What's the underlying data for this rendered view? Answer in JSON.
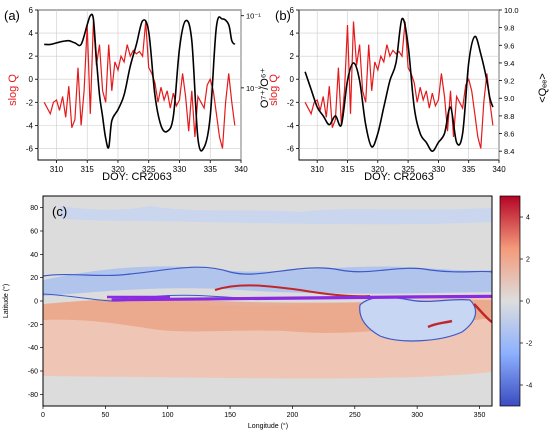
{
  "chart_data": [
    {
      "panel_label": "(a)",
      "type": "line",
      "xlabel": "DOY: CR2063",
      "x_ticks": [
        "310",
        "315",
        "320",
        "325",
        "330",
        "335",
        "340"
      ],
      "xlim": [
        307,
        340
      ],
      "ylabel_left": "slog Q",
      "ylim_left": [
        -7,
        6
      ],
      "y_ticks_left": [
        "6",
        "4",
        "2",
        "0",
        "-2",
        "-4",
        "-6"
      ],
      "ylabel_right": "O⁷⁺/O⁶⁺",
      "y_ticks_right": [
        "10⁻¹",
        "10⁻²"
      ],
      "grid": true,
      "colors": {
        "slog_q": "#e41a1c",
        "ratio": "#000000"
      },
      "series": [
        {
          "axis": "left",
          "x": [
            308,
            309,
            309.5,
            310,
            310.5,
            311,
            311.5,
            312,
            312.5,
            313,
            313.5,
            314,
            314.5,
            315,
            315.5,
            316,
            316.5,
            317,
            317.5,
            318,
            318.5,
            319,
            319.5,
            320,
            320.5,
            321,
            321.5,
            322,
            322.5,
            323,
            323.5,
            324,
            324.5,
            325,
            325.5,
            326,
            326.5,
            327,
            327.5,
            328,
            328.5,
            329,
            329.5,
            330,
            330.5,
            331,
            331.5,
            332,
            332.5,
            333,
            333.5,
            334,
            334.5,
            335,
            335.5,
            336,
            336.5,
            337,
            337.5,
            338,
            338.5,
            339
          ],
          "y": [
            -2,
            -3,
            -2,
            -1.8,
            -2.7,
            -1.5,
            -3.3,
            -0.6,
            -4.2,
            -3.5,
            1,
            -4,
            -1,
            4.7,
            -3,
            5,
            1.2,
            3,
            -1,
            -2,
            3,
            -1,
            1.5,
            0.8,
            2,
            1.5,
            3,
            2,
            2.5,
            2.2,
            2.4,
            2,
            5,
            1,
            0.5,
            -0.3,
            -2,
            -0.7,
            -1.8,
            -1,
            -2.5,
            -1.2,
            -2.3,
            -1.8,
            0.5,
            -1.5,
            -4.5,
            -1,
            -5,
            -1.5,
            -2,
            -2.5,
            -0.5,
            0,
            -1,
            -3,
            -5,
            -6,
            -2,
            0.5,
            -2,
            -4
          ]
        },
        {
          "axis": "right",
          "x": [
            308,
            309,
            310,
            311,
            312,
            313,
            314,
            315,
            315.5,
            316,
            316.5,
            317,
            317.5,
            318,
            318.5,
            319,
            320,
            321,
            322,
            323,
            324,
            325,
            326,
            327,
            328,
            329,
            330,
            331,
            332,
            333,
            334,
            335,
            336,
            337,
            338,
            338.5,
            339
          ],
          "y": [
            0.04,
            0.04,
            0.042,
            0.044,
            0.045,
            0.042,
            0.04,
            0.075,
            0.1,
            0.09,
            0.025,
            0.008,
            0.004,
            0.002,
            0.0015,
            0.0035,
            0.005,
            0.008,
            0.02,
            0.04,
            0.085,
            0.06,
            0.008,
            0.003,
            0.0025,
            0.004,
            0.035,
            0.085,
            0.045,
            0.002,
            0.0015,
            0.004,
            0.07,
            0.09,
            0.075,
            0.045,
            0.04
          ]
        }
      ]
    },
    {
      "panel_label": "(b)",
      "type": "line",
      "xlabel": "DOY: CR2063",
      "x_ticks": [
        "310",
        "315",
        "320",
        "325",
        "330",
        "335",
        "340"
      ],
      "xlim": [
        307,
        340
      ],
      "ylabel_left": "slog Q",
      "ylim_left": [
        -7,
        6
      ],
      "y_ticks_left": [
        "6",
        "4",
        "2",
        "0",
        "-2",
        "-4",
        "-6"
      ],
      "ylabel_right": "<Qₑₑ>",
      "ylim_right": [
        8.3,
        10.0
      ],
      "y_ticks_right": [
        "10.0",
        "9.8",
        "9.6",
        "9.4",
        "9.2",
        "9.0",
        "8.8",
        "8.6",
        "8.4"
      ],
      "grid": true,
      "colors": {
        "slog_q": "#e41a1c",
        "charge": "#000000"
      },
      "series": [
        {
          "axis": "left",
          "x": [
            308,
            309,
            309.5,
            310,
            310.5,
            311,
            311.5,
            312,
            312.5,
            313,
            313.5,
            314,
            314.5,
            315,
            315.5,
            316,
            316.5,
            317,
            317.5,
            318,
            318.5,
            319,
            319.5,
            320,
            320.5,
            321,
            321.5,
            322,
            322.5,
            323,
            323.5,
            324,
            324.5,
            325,
            325.5,
            326,
            326.5,
            327,
            327.5,
            328,
            328.5,
            329,
            329.5,
            330,
            330.5,
            331,
            331.5,
            332,
            332.5,
            333,
            333.5,
            334,
            334.5,
            335,
            335.5,
            336,
            336.5,
            337,
            337.5,
            338,
            338.5,
            339
          ],
          "y": [
            -2,
            -3,
            -2,
            -1.8,
            -2.7,
            -1.5,
            -3.3,
            -0.6,
            -4.2,
            -3.5,
            1,
            -4,
            -1,
            4.7,
            -3,
            5,
            1.2,
            3,
            -1,
            -2,
            3,
            -1,
            1.5,
            0.8,
            2,
            1.5,
            3,
            2,
            2.5,
            2.2,
            2.4,
            2,
            5,
            1,
            0.5,
            -0.3,
            -2,
            -0.7,
            -1.8,
            -1,
            -2.5,
            -1.2,
            -2.3,
            -1.8,
            0.5,
            -1.5,
            -4.5,
            -1,
            -5,
            -1.5,
            -2,
            -2.5,
            -0.5,
            0,
            -1,
            -3,
            -5,
            -6,
            -2,
            0.5,
            -2,
            -4
          ]
        },
        {
          "axis": "right",
          "x": [
            308,
            309,
            310,
            311,
            312,
            313,
            314,
            315,
            316,
            317,
            318,
            319,
            320,
            321,
            322,
            323,
            324,
            325,
            326,
            327,
            328,
            329,
            330,
            331,
            332,
            333,
            334,
            335,
            336,
            337,
            338,
            338.5,
            339
          ],
          "y": [
            9.3,
            9.1,
            8.9,
            8.8,
            8.7,
            8.8,
            8.7,
            9.2,
            9.4,
            9.2,
            8.7,
            8.45,
            8.6,
            8.9,
            9.2,
            9.4,
            9.9,
            9.6,
            8.9,
            8.6,
            8.5,
            8.4,
            8.5,
            8.6,
            8.9,
            8.5,
            8.6,
            9.4,
            9.7,
            9.5,
            9.2,
            9.0,
            8.9
          ]
        }
      ]
    },
    {
      "panel_label": "(c)",
      "type": "heatmap",
      "xlabel": "Longitude (°)",
      "ylabel": "Latitude (°)",
      "xlim": [
        0,
        360
      ],
      "ylim": [
        -90,
        90
      ],
      "x_ticks": [
        "0",
        "50",
        "100",
        "150",
        "200",
        "250",
        "300",
        "350"
      ],
      "y_ticks": [
        "80",
        "60",
        "40",
        "20",
        "0",
        "-20",
        "-40",
        "-60",
        "-80"
      ],
      "colorbar_ticks": [
        "4",
        "2",
        "0",
        "-2",
        "-4"
      ],
      "colorbar_range": [
        -5,
        5
      ],
      "colormap": [
        "#3b4cc0",
        "#8db0fe",
        "#dddddd",
        "#f49a7b",
        "#b40426"
      ],
      "trajectory_color": "#8a2be2",
      "trajectory": {
        "x": [
          55,
          100,
          150,
          200,
          250,
          300,
          360
        ],
        "y": [
          1,
          1.5,
          2,
          2.5,
          3,
          3.5,
          4
        ]
      }
    }
  ]
}
